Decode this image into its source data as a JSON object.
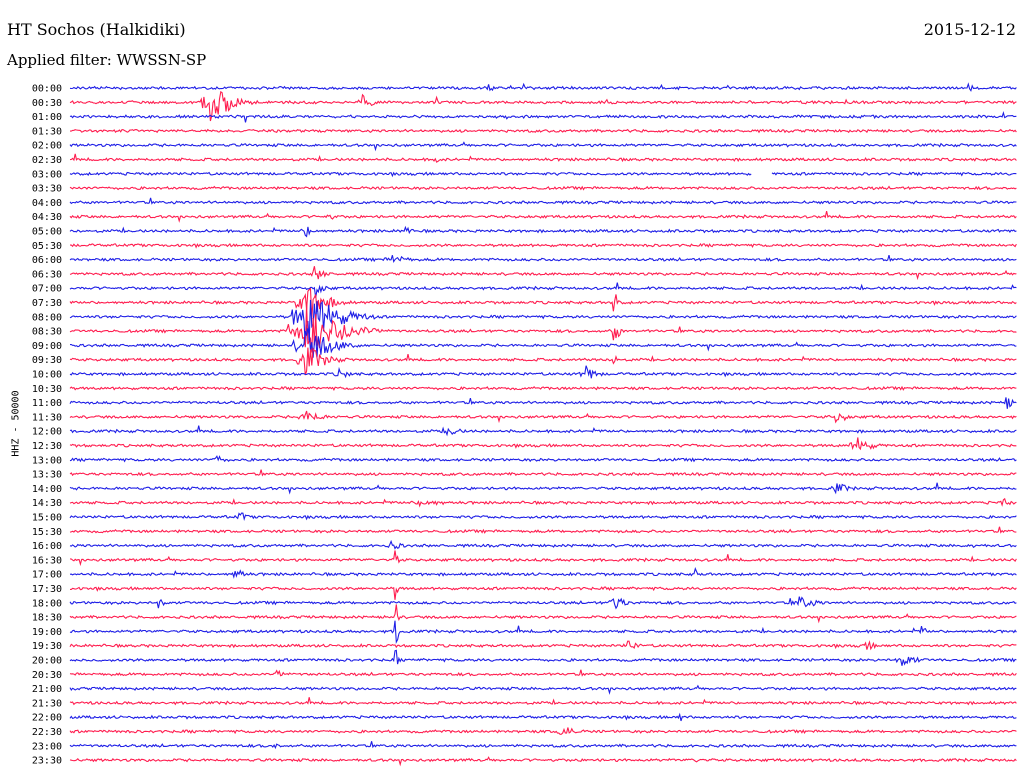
{
  "header": {
    "station": "HT Sochos (Halkidiki)",
    "date": "2015-12-12",
    "filter": "Applied filter: WWSSN-SP",
    "channel": "HHZ - 50000"
  },
  "colors": {
    "trace_a": "#1e1ee6",
    "trace_b": "#ff1d4f",
    "text": "#000000",
    "background": "#ffffff"
  },
  "chart_data": {
    "type": "line",
    "title": "HT Sochos (Halkidiki)",
    "subtitle": "Applied filter: WWSSN-SP",
    "ylabel": "HHZ - 50000",
    "xlabel": "",
    "grid": false,
    "legend": "none",
    "rows": [
      {
        "label": "00:00",
        "events": [
          {
            "pos": 0.44,
            "amp": 5,
            "dur": 0.02
          },
          {
            "pos": 0.95,
            "amp": 4,
            "dur": 0.01
          }
        ]
      },
      {
        "label": "00:30",
        "events": [
          {
            "pos": 0.15,
            "amp": 22,
            "dur": 0.04
          },
          {
            "pos": 0.31,
            "amp": 8,
            "dur": 0.02
          }
        ]
      },
      {
        "label": "01:00",
        "events": []
      },
      {
        "label": "01:30",
        "events": []
      },
      {
        "label": "02:00",
        "events": []
      },
      {
        "label": "02:30",
        "events": [
          {
            "pos": 0.385,
            "amp": 5,
            "dur": 0.01
          }
        ]
      },
      {
        "label": "03:00",
        "events": [
          {
            "pos": 0.73,
            "amp": 0,
            "dur": 0.02
          }
        ]
      },
      {
        "label": "03:30",
        "events": []
      },
      {
        "label": "04:00",
        "events": []
      },
      {
        "label": "04:30",
        "events": [
          {
            "pos": 0.27,
            "amp": 4,
            "dur": 0.03
          }
        ]
      },
      {
        "label": "05:00",
        "events": [
          {
            "pos": 0.25,
            "amp": 6,
            "dur": 0.02
          },
          {
            "pos": 0.355,
            "amp": 10,
            "dur": 0.006
          }
        ]
      },
      {
        "label": "05:30",
        "events": []
      },
      {
        "label": "06:00",
        "events": [
          {
            "pos": 0.34,
            "amp": 6,
            "dur": 0.03
          }
        ]
      },
      {
        "label": "06:30",
        "events": [
          {
            "pos": 0.26,
            "amp": 8,
            "dur": 0.02
          }
        ]
      },
      {
        "label": "07:00",
        "events": [
          {
            "pos": 0.26,
            "amp": 10,
            "dur": 0.02
          }
        ]
      },
      {
        "label": "07:30",
        "events": [
          {
            "pos": 0.25,
            "amp": 22,
            "dur": 0.04
          },
          {
            "pos": 0.575,
            "amp": 16,
            "dur": 0.006
          }
        ]
      },
      {
        "label": "08:00",
        "events": [
          {
            "pos": 0.25,
            "amp": 30,
            "dur": 0.06
          }
        ]
      },
      {
        "label": "08:30",
        "events": [
          {
            "pos": 0.25,
            "amp": 28,
            "dur": 0.07
          },
          {
            "pos": 0.575,
            "amp": 14,
            "dur": 0.01
          }
        ]
      },
      {
        "label": "09:00",
        "events": [
          {
            "pos": 0.25,
            "amp": 20,
            "dur": 0.05
          }
        ]
      },
      {
        "label": "09:30",
        "events": [
          {
            "pos": 0.25,
            "amp": 16,
            "dur": 0.04
          },
          {
            "pos": 0.575,
            "amp": 14,
            "dur": 0.004
          }
        ]
      },
      {
        "label": "10:00",
        "events": [
          {
            "pos": 0.285,
            "amp": 6,
            "dur": 0.02
          },
          {
            "pos": 0.545,
            "amp": 10,
            "dur": 0.02
          }
        ]
      },
      {
        "label": "10:30",
        "events": []
      },
      {
        "label": "11:00",
        "events": [
          {
            "pos": 0.99,
            "amp": 8,
            "dur": 0.01
          }
        ]
      },
      {
        "label": "11:30",
        "events": [
          {
            "pos": 0.25,
            "amp": 8,
            "dur": 0.03
          },
          {
            "pos": 0.81,
            "amp": 6,
            "dur": 0.03
          }
        ]
      },
      {
        "label": "12:00",
        "events": [
          {
            "pos": 0.4,
            "amp": 5,
            "dur": 0.03
          }
        ]
      },
      {
        "label": "12:30",
        "events": [
          {
            "pos": 0.83,
            "amp": 10,
            "dur": 0.03
          }
        ]
      },
      {
        "label": "13:00",
        "events": [
          {
            "pos": 0.155,
            "amp": 6,
            "dur": 0.015
          }
        ]
      },
      {
        "label": "13:30",
        "events": []
      },
      {
        "label": "14:00",
        "events": [
          {
            "pos": 0.81,
            "amp": 6,
            "dur": 0.03
          }
        ]
      },
      {
        "label": "14:30",
        "events": [
          {
            "pos": 0.37,
            "amp": 5,
            "dur": 0.05
          },
          {
            "pos": 0.985,
            "amp": 6,
            "dur": 0.015
          }
        ]
      },
      {
        "label": "15:00",
        "events": [
          {
            "pos": 0.18,
            "amp": 6,
            "dur": 0.015
          }
        ]
      },
      {
        "label": "15:30",
        "events": []
      },
      {
        "label": "16:00",
        "events": [
          {
            "pos": 0.34,
            "amp": 6,
            "dur": 0.02
          },
          {
            "pos": 0.955,
            "amp": 5,
            "dur": 0.005
          }
        ]
      },
      {
        "label": "16:30",
        "events": [
          {
            "pos": 0.345,
            "amp": 10,
            "dur": 0.004
          }
        ]
      },
      {
        "label": "17:00",
        "events": [
          {
            "pos": 0.175,
            "amp": 10,
            "dur": 0.015
          },
          {
            "pos": 0.66,
            "amp": 8,
            "dur": 0.005
          }
        ]
      },
      {
        "label": "17:30",
        "events": [
          {
            "pos": 0.345,
            "amp": 12,
            "dur": 0.004
          }
        ]
      },
      {
        "label": "18:00",
        "events": [
          {
            "pos": 0.095,
            "amp": 6,
            "dur": 0.01
          },
          {
            "pos": 0.575,
            "amp": 10,
            "dur": 0.02
          },
          {
            "pos": 0.77,
            "amp": 7,
            "dur": 0.04
          }
        ]
      },
      {
        "label": "18:30",
        "events": [
          {
            "pos": 0.345,
            "amp": 14,
            "dur": 0.004
          }
        ]
      },
      {
        "label": "19:00",
        "events": [
          {
            "pos": 0.345,
            "amp": 16,
            "dur": 0.006
          },
          {
            "pos": 0.9,
            "amp": 6,
            "dur": 0.01
          }
        ]
      },
      {
        "label": "19:30",
        "events": [
          {
            "pos": 0.59,
            "amp": 6,
            "dur": 0.02
          },
          {
            "pos": 0.84,
            "amp": 6,
            "dur": 0.02
          }
        ]
      },
      {
        "label": "20:00",
        "events": [
          {
            "pos": 0.345,
            "amp": 10,
            "dur": 0.004
          },
          {
            "pos": 0.88,
            "amp": 7,
            "dur": 0.03
          }
        ]
      },
      {
        "label": "20:30",
        "events": [
          {
            "pos": 0.22,
            "amp": 5,
            "dur": 0.02
          }
        ]
      },
      {
        "label": "21:00",
        "events": []
      },
      {
        "label": "21:30",
        "events": []
      },
      {
        "label": "22:00",
        "events": [
          {
            "pos": 0.645,
            "amp": 6,
            "dur": 0.005
          }
        ]
      },
      {
        "label": "22:30",
        "events": [
          {
            "pos": 0.52,
            "amp": 10,
            "dur": 0.02
          }
        ]
      },
      {
        "label": "23:00",
        "events": [
          {
            "pos": 0.215,
            "amp": 5,
            "dur": 0.01
          }
        ]
      },
      {
        "label": "23:30",
        "events": [
          {
            "pos": 0.66,
            "amp": 5,
            "dur": 0.01
          }
        ]
      }
    ]
  }
}
